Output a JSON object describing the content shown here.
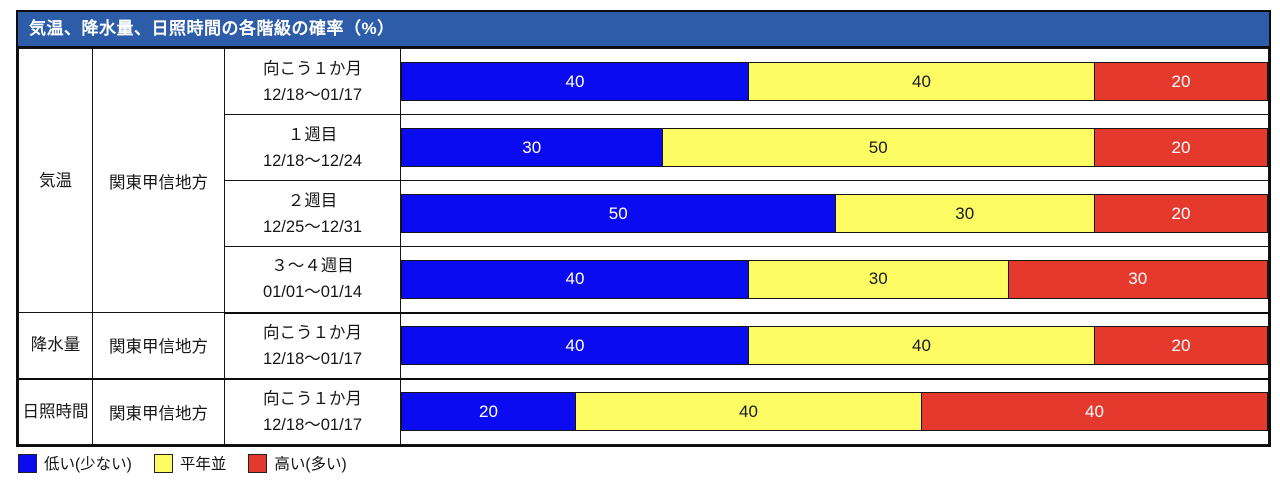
{
  "title": "気温、降水量、日照時間の各階級の確率（%）",
  "colors": {
    "header_bg": "#2d5da9",
    "low": "#0b0bf2",
    "normal": "#fdfd63",
    "high": "#e5392e",
    "border": "#0d0d0d"
  },
  "rows": [
    {
      "element": "気温",
      "region": "関東甲信地方",
      "period": "向こう１か月",
      "dates": "12/18～01/17",
      "values": {
        "low": 40,
        "normal": 40,
        "high": 20
      }
    },
    {
      "period": "１週目",
      "dates": "12/18～12/24",
      "values": {
        "low": 30,
        "normal": 50,
        "high": 20
      }
    },
    {
      "period": "２週目",
      "dates": "12/25～12/31",
      "values": {
        "low": 50,
        "normal": 30,
        "high": 20
      }
    },
    {
      "period": "３～４週目",
      "dates": "01/01～01/14",
      "values": {
        "low": 40,
        "normal": 30,
        "high": 30
      }
    },
    {
      "element": "降水量",
      "region": "関東甲信地方",
      "period": "向こう１か月",
      "dates": "12/18～01/17",
      "values": {
        "low": 40,
        "normal": 40,
        "high": 20
      }
    },
    {
      "element": "日照時間",
      "region": "関東甲信地方",
      "period": "向こう１か月",
      "dates": "12/18～01/17",
      "values": {
        "low": 20,
        "normal": 40,
        "high": 40
      }
    }
  ],
  "legend": [
    {
      "label": "低い(少ない)",
      "color_key": "low"
    },
    {
      "label": "平年並",
      "color_key": "normal"
    },
    {
      "label": "高い(多い)",
      "color_key": "high"
    }
  ],
  "chart_data": {
    "type": "bar",
    "subtype": "horizontal_stacked",
    "title": "気温、降水量、日照時間の各階級の確率（%）",
    "unit": "%",
    "xlim": [
      0,
      100
    ],
    "categories": [
      "気温 関東甲信地方 向こう１か月 12/18～01/17",
      "気温 関東甲信地方 １週目 12/18～12/24",
      "気温 関東甲信地方 ２週目 12/25～12/31",
      "気温 関東甲信地方 ３～４週目 01/01～01/14",
      "降水量 関東甲信地方 向こう１か月 12/18～01/17",
      "日照時間 関東甲信地方 向こう１か月 12/18～01/17"
    ],
    "series": [
      {
        "name": "低い(少ない)",
        "color": "#0b0bf2",
        "values": [
          40,
          30,
          50,
          40,
          40,
          20
        ]
      },
      {
        "name": "平年並",
        "color": "#fdfd63",
        "values": [
          40,
          50,
          30,
          30,
          40,
          40
        ]
      },
      {
        "name": "高い(多い)",
        "color": "#e5392e",
        "values": [
          20,
          20,
          20,
          30,
          20,
          40
        ]
      }
    ],
    "legend_position": "bottom-left",
    "grid": false
  }
}
